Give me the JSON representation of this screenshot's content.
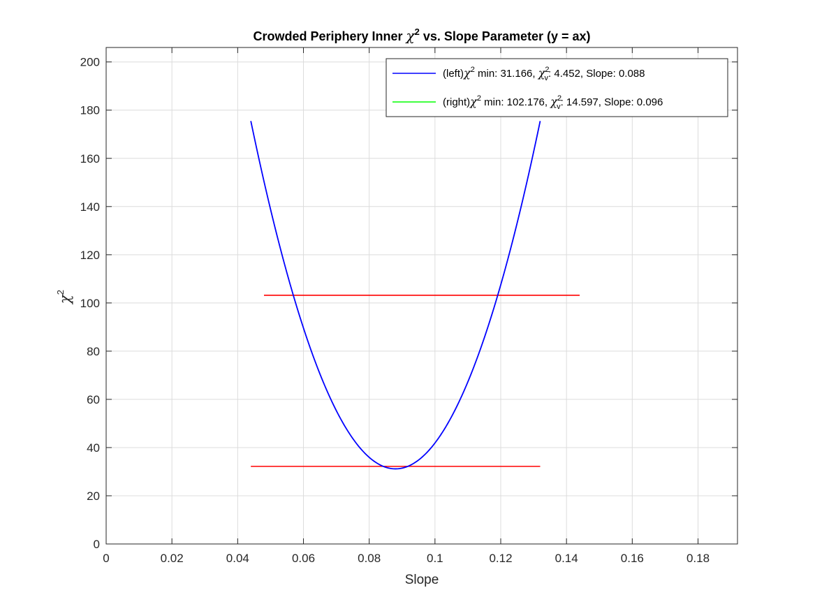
{
  "chart_data": {
    "type": "line",
    "title_parts": {
      "prefix": "Crowded Periphery Inner ",
      "symbol": "χ",
      "sup": "2",
      "suffix": " vs. Slope Parameter (y = ax)"
    },
    "xlabel": "Slope",
    "ylabel_symbol": "χ",
    "ylabel_sup": "2",
    "xlim": [
      0,
      0.192
    ],
    "ylim": [
      0,
      206
    ],
    "xticks": [
      0,
      0.02,
      0.04,
      0.06,
      0.08,
      0.1,
      0.12,
      0.14,
      0.16,
      0.18
    ],
    "xtick_labels": [
      "0",
      "0.02",
      "0.04",
      "0.06",
      "0.08",
      "0.1",
      "0.12",
      "0.14",
      "0.16",
      "0.18"
    ],
    "yticks": [
      0,
      20,
      40,
      60,
      80,
      100,
      120,
      140,
      160,
      180,
      200
    ],
    "ytick_labels": [
      "0",
      "20",
      "40",
      "60",
      "80",
      "100",
      "120",
      "140",
      "160",
      "180",
      "200"
    ],
    "grid": true,
    "legend_position": "top-right",
    "series": [
      {
        "legend_parts": {
          "prefix": "(left)",
          "symbol": "χ",
          "sup": "2",
          "mid1": " min: 31.166, ",
          "nu_symbol": "χ",
          "nu_sup": "2",
          "nu_sub": "v",
          "mid2": ": 4.452, Slope: 0.088"
        },
        "color": "#0000ff",
        "curve": "parabola",
        "min_x": 0.088,
        "min_y": 31.166,
        "x_range": [
          0.044,
          0.132
        ],
        "edge_y": 175.5
      },
      {
        "legend_parts": {
          "prefix": "(right)",
          "symbol": "χ",
          "sup": "2",
          "mid1": " min: 102.176, ",
          "nu_symbol": "χ",
          "nu_sup": "2",
          "nu_sub": "v",
          "mid2": ": 14.597, Slope: 0.096"
        },
        "color": "#00ff00",
        "curve": "none"
      }
    ],
    "reference_lines": [
      {
        "color": "#ff0000",
        "y": 32.2,
        "x_range": [
          0.044,
          0.132
        ]
      },
      {
        "color": "#ff0000",
        "y": 103.2,
        "x_range": [
          0.048,
          0.144
        ]
      }
    ]
  }
}
